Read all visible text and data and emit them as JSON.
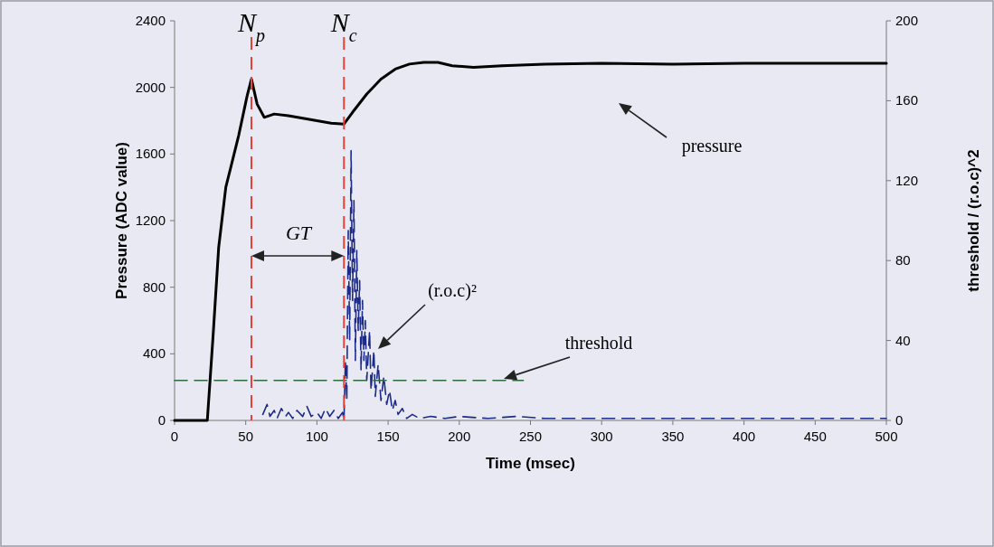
{
  "chart_data": {
    "type": "line",
    "xlabel": "Time (msec)",
    "ylabel": "Pressure  (ADC value)",
    "y2label": "threshold / (r.o.c)^2",
    "xlim": [
      0,
      500
    ],
    "xticks": [
      0,
      50,
      100,
      150,
      200,
      250,
      300,
      350,
      400,
      450,
      500
    ],
    "ylim": [
      0,
      2400
    ],
    "yticks": [
      0,
      400,
      800,
      1200,
      1600,
      2000,
      2400
    ],
    "y2lim": [
      0,
      200
    ],
    "y2ticks": [
      0,
      40,
      80,
      120,
      160,
      200
    ],
    "grid": false,
    "series": [
      {
        "color": "#000000",
        "line_style": "solid",
        "x": [
          0,
          23,
          27,
          31,
          36,
          45,
          51,
          54,
          58,
          63,
          70,
          80,
          90,
          100,
          110,
          119,
          125,
          135,
          145,
          155,
          165,
          175,
          185,
          195,
          210,
          230,
          260,
          300,
          350,
          400,
          450,
          500
        ],
        "values": [
          0,
          0,
          500,
          1040,
          1400,
          1710,
          1950,
          2050,
          1900,
          1820,
          1840,
          1830,
          1815,
          1800,
          1785,
          1780,
          1850,
          1960,
          2050,
          2110,
          2140,
          2150,
          2150,
          2130,
          2120,
          2130,
          2140,
          2145,
          2140,
          2145,
          2145,
          2145
        ]
      },
      {
        "color": "#1c2a8c",
        "line_style": "dashed",
        "axis": "y2",
        "x": [
          62,
          65,
          67,
          70,
          72,
          75,
          78,
          80,
          83,
          86,
          90,
          93,
          96,
          100,
          103,
          106,
          109,
          112,
          115,
          118,
          119,
          120,
          121,
          122,
          123,
          124,
          125,
          126,
          127,
          128,
          129,
          130,
          131,
          132,
          133,
          134,
          135,
          137,
          138,
          140,
          141,
          143,
          145,
          147,
          149,
          151,
          153,
          155,
          157,
          160,
          163,
          167,
          172,
          180,
          190,
          200,
          220,
          240,
          260,
          280,
          300,
          330,
          360,
          400,
          440,
          480,
          500
        ],
        "values": [
          3,
          8,
          2,
          5,
          1,
          6,
          2,
          4,
          1,
          5,
          2,
          7,
          2,
          4,
          1,
          6,
          2,
          5,
          1,
          4,
          0,
          30,
          10,
          95,
          40,
          135,
          60,
          110,
          30,
          85,
          45,
          70,
          25,
          60,
          30,
          50,
          20,
          45,
          15,
          35,
          12,
          28,
          10,
          22,
          8,
          15,
          5,
          10,
          3,
          6,
          1,
          3,
          1,
          2,
          1,
          2,
          1,
          2,
          1,
          1,
          1,
          1,
          1,
          1,
          1,
          1,
          1
        ]
      },
      {
        "color": "#2f6b3f",
        "line_style": "dashed",
        "axis": "y2",
        "x": [
          0,
          245
        ],
        "values": [
          20,
          20
        ]
      }
    ],
    "ref_lines": [
      {
        "axis": "x",
        "value": 54,
        "label": "N$_{p}$",
        "color": "#e8413a",
        "line_style": "dashed"
      },
      {
        "axis": "x",
        "value": 119,
        "label": "N$_{c}$",
        "color": "#e8413a",
        "line_style": "dashed"
      }
    ],
    "annotations": [
      "GT",
      "(r.o.c)²",
      "threshold",
      "pressure"
    ]
  }
}
